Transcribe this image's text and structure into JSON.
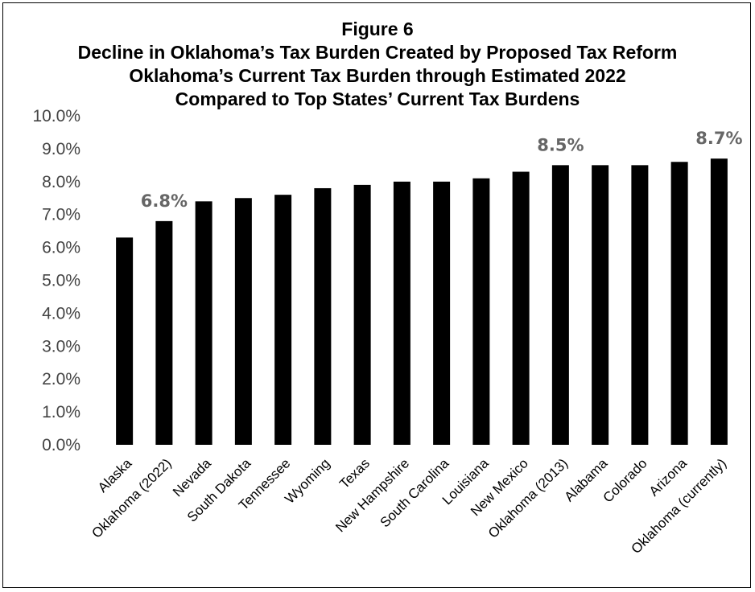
{
  "chart_data": {
    "type": "bar",
    "title": "Figure 6",
    "subtitle_lines": [
      "Decline in Oklahoma’s Tax Burden Created by Proposed Tax Reform",
      "Oklahoma’s Current Tax Burden through Estimated 2022",
      "Compared to Top States’ Current Tax Burdens"
    ],
    "categories": [
      "Alaska",
      "Oklahoma (2022)",
      "Nevada",
      "South Dakota",
      "Tennessee",
      "Wyoming",
      "Texas",
      "New Hampshire",
      "South Carolina",
      "Louisiana",
      "New Mexico",
      "Oklahoma (2013)",
      "Alabama",
      "Colorado",
      "Arizona",
      "Oklahoma (currently)"
    ],
    "values": [
      6.3,
      6.8,
      7.4,
      7.5,
      7.6,
      7.8,
      7.9,
      8.0,
      8.0,
      8.1,
      8.3,
      8.5,
      8.5,
      8.5,
      8.6,
      8.7
    ],
    "data_labels": [
      {
        "index": 1,
        "text": "6.8%"
      },
      {
        "index": 11,
        "text": "8.5%"
      },
      {
        "index": 15,
        "text": "8.7%"
      }
    ],
    "yticks": [
      "0.0%",
      "1.0%",
      "2.0%",
      "3.0%",
      "4.0%",
      "5.0%",
      "6.0%",
      "7.0%",
      "8.0%",
      "9.0%",
      "10.0%"
    ],
    "ylim": [
      0,
      10
    ],
    "bar_color": "#000000",
    "label_color": "#666666",
    "grid": false,
    "legend": "none"
  }
}
